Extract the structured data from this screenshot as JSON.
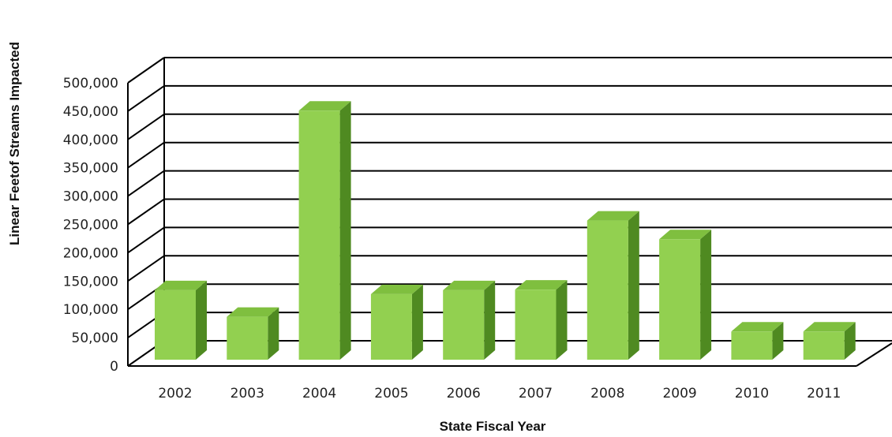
{
  "chart_data": {
    "type": "bar",
    "title": "",
    "xlabel": "State Fiscal Year",
    "ylabel": "Linear Feetof Streams Impacted",
    "categories": [
      "2002",
      "2003",
      "2004",
      "2005",
      "2006",
      "2007",
      "2008",
      "2009",
      "2010",
      "2011"
    ],
    "values": [
      145000,
      98000,
      462000,
      138000,
      145000,
      146000,
      268000,
      235000,
      72000,
      72000
    ],
    "ylim": [
      0,
      500000
    ],
    "yticks": [
      0,
      50000,
      100000,
      150000,
      200000,
      250000,
      300000,
      350000,
      400000,
      450000,
      500000
    ],
    "ytick_labels": [
      "0",
      "50,000",
      "100,000",
      "150,000",
      "200,000",
      "250,000",
      "300,000",
      "350,000",
      "400,000",
      "450,000",
      "500,000"
    ],
    "grid": true,
    "legend": "none",
    "style": "3d-column",
    "colors": {
      "bar_front": "#92d050",
      "bar_side": "#4f8a21",
      "bar_top": "#7fbf3f",
      "grid": "#000000"
    }
  }
}
